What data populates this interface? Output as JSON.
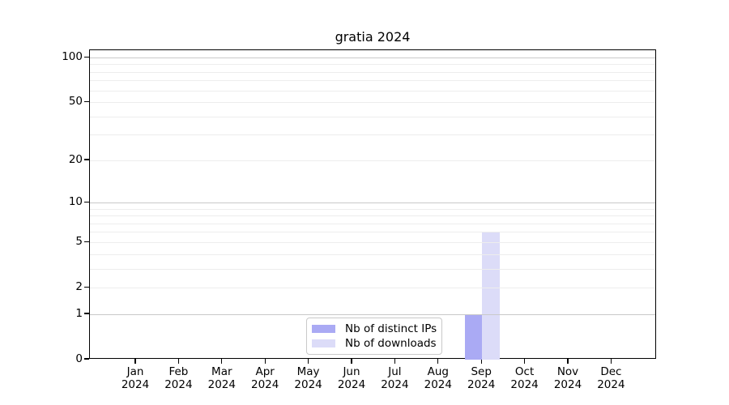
{
  "chart_data": {
    "type": "bar",
    "title": "gratia 2024",
    "x": {
      "categories": [
        "Jan",
        "Feb",
        "Mar",
        "Apr",
        "May",
        "Jun",
        "Jul",
        "Aug",
        "Sep",
        "Oct",
        "Nov",
        "Dec"
      ],
      "year": "2024"
    },
    "y_axis": {
      "scale": "log1p",
      "ylim": [
        0,
        100
      ],
      "tick_labels": [
        100,
        50,
        20,
        10,
        5,
        2,
        1,
        0
      ],
      "major_gridlines": [
        1,
        10,
        100
      ],
      "minor_gridlines": [
        2,
        3,
        4,
        5,
        6,
        7,
        8,
        9,
        20,
        30,
        40,
        50,
        60,
        70,
        80,
        90
      ]
    },
    "series": [
      {
        "name": "Nb of distinct IPs",
        "color": "#aaaaf4",
        "values": [
          0,
          0,
          0,
          0,
          0,
          0,
          0,
          0,
          1,
          0,
          0,
          0
        ]
      },
      {
        "name": "Nb of downloads",
        "color": "#dcdcf8",
        "values": [
          0,
          0,
          0,
          0,
          0,
          0,
          0,
          0,
          6,
          0,
          0,
          0
        ]
      }
    ],
    "legend": {
      "position": "inside-bottom-center"
    },
    "colors": {
      "background": "#ffffff",
      "axis": "#000000",
      "major_grid": "#c9c9c9",
      "minor_grid": "#ededed",
      "legend_border": "#c9c9c9"
    }
  }
}
